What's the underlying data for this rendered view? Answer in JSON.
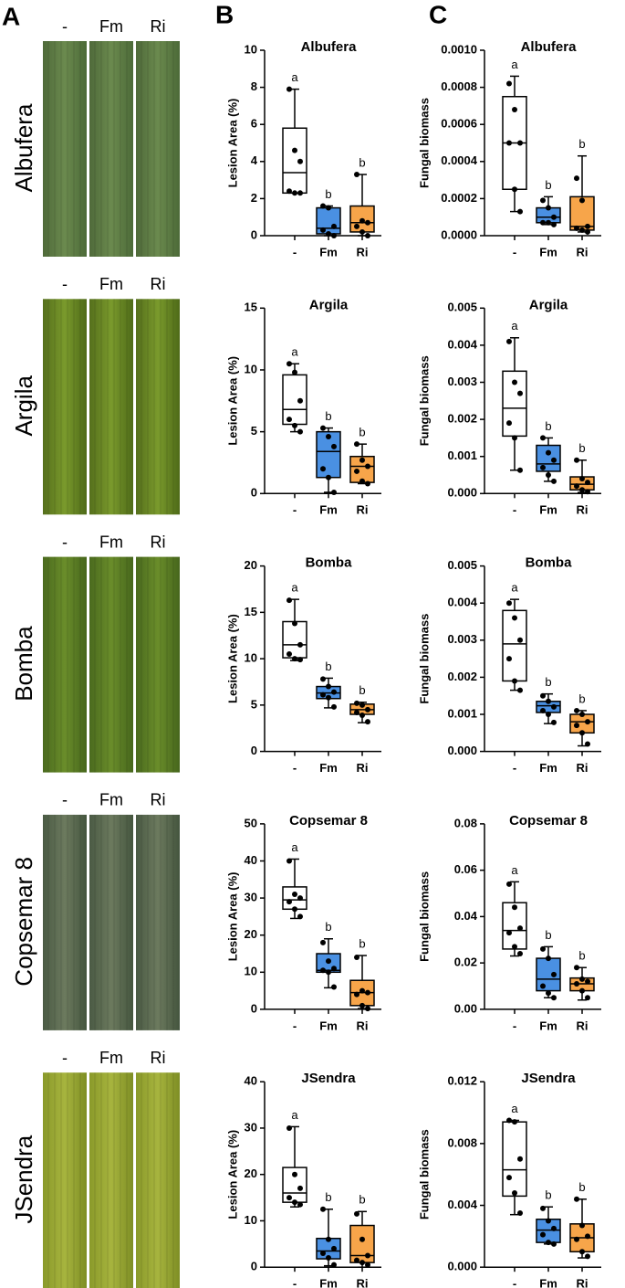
{
  "panels": [
    "A",
    "B",
    "C"
  ],
  "leaf_rows": [
    {
      "label": "Albufera",
      "columns": [
        "-",
        "Fm",
        "Ri"
      ]
    },
    {
      "label": "Argila",
      "columns": [
        "-",
        "Fm",
        "Ri"
      ]
    },
    {
      "label": "Bomba",
      "columns": [
        "-",
        "Fm",
        "Ri"
      ]
    },
    {
      "label": "Copsemar 8",
      "columns": [
        "-",
        "Fm",
        "Ri"
      ]
    },
    {
      "label": "JSendra",
      "columns": [
        "-",
        "Fm",
        "Ri"
      ]
    }
  ],
  "chart_data": [
    {
      "type": "box",
      "title": "Albufera",
      "ylabel": "Lesion Area (%)",
      "ylim": [
        0,
        10
      ],
      "yticks": [
        0,
        2,
        4,
        6,
        8,
        10
      ],
      "categories": [
        "-",
        "Fm",
        "Ri"
      ],
      "colors": [
        "#ffffff",
        "#4a90e2",
        "#f7a54a"
      ],
      "letters": [
        "a",
        "b",
        "b"
      ],
      "boxes": [
        {
          "min": 2.3,
          "q1": 2.3,
          "median": 3.4,
          "q3": 5.8,
          "max": 7.9,
          "points": [
            7.9,
            4.6,
            4.0,
            2.4,
            2.3,
            2.3
          ]
        },
        {
          "min": 0.0,
          "q1": 0.1,
          "median": 0.4,
          "q3": 1.5,
          "max": 1.6,
          "points": [
            1.6,
            1.5,
            0.5,
            0.3,
            0.1,
            0.0
          ]
        },
        {
          "min": 0.0,
          "q1": 0.2,
          "median": 0.7,
          "q3": 1.6,
          "max": 3.3,
          "points": [
            3.3,
            0.8,
            0.7,
            0.5,
            0.2,
            0.0
          ]
        }
      ]
    },
    {
      "type": "box",
      "title": "Albufera",
      "ylabel": "Fungal biomass",
      "ylim": [
        0,
        0.001
      ],
      "yticks": [
        {
          "value": 0,
          "label": "0.0000"
        },
        {
          "value": 0.0002,
          "label": "0.0002"
        },
        {
          "value": 0.0004,
          "label": "0.0004"
        },
        {
          "value": 0.0006,
          "label": "0.0006"
        },
        {
          "value": 0.0008,
          "label": "0.0008"
        },
        {
          "value": 0.001,
          "label": "0.0010"
        }
      ],
      "categories": [
        "-",
        "Fm",
        "Ri"
      ],
      "colors": [
        "#ffffff",
        "#4a90e2",
        "#f7a54a"
      ],
      "letters": [
        "a",
        "b",
        "b"
      ],
      "boxes": [
        {
          "min": 0.00013,
          "q1": 0.00025,
          "median": 0.0005,
          "q3": 0.00075,
          "max": 0.00086,
          "points": [
            0.00082,
            0.00068,
            0.0005,
            0.0005,
            0.00025,
            0.00013
          ]
        },
        {
          "min": 6e-05,
          "q1": 7e-05,
          "median": 0.0001,
          "q3": 0.00015,
          "max": 0.00021,
          "points": [
            0.00019,
            0.00015,
            0.0001,
            7e-05,
            7e-05,
            6e-05
          ]
        },
        {
          "min": 2e-05,
          "q1": 3e-05,
          "median": 5e-05,
          "q3": 0.00021,
          "max": 0.00043,
          "points": [
            0.00031,
            0.00019,
            5e-05,
            4e-05,
            3e-05,
            2e-05
          ]
        }
      ]
    },
    {
      "type": "box",
      "title": "Argila",
      "ylabel": "Lesion Area (%)",
      "ylim": [
        0,
        15
      ],
      "yticks": [
        0,
        5,
        10,
        15
      ],
      "categories": [
        "-",
        "Fm",
        "Ri"
      ],
      "colors": [
        "#ffffff",
        "#4a90e2",
        "#f7a54a"
      ],
      "letters": [
        "a",
        "b",
        "b"
      ],
      "boxes": [
        {
          "min": 5.0,
          "q1": 5.6,
          "median": 6.8,
          "q3": 9.6,
          "max": 10.5,
          "points": [
            10.5,
            9.8,
            7.5,
            6.0,
            5.5,
            5.0
          ]
        },
        {
          "min": 0.1,
          "q1": 1.3,
          "median": 3.4,
          "q3": 5.0,
          "max": 5.3,
          "points": [
            5.3,
            4.6,
            3.8,
            2.0,
            1.3,
            0.1
          ]
        },
        {
          "min": 0.8,
          "q1": 0.9,
          "median": 2.2,
          "q3": 3.0,
          "max": 4.0,
          "points": [
            4.0,
            2.7,
            2.2,
            1.8,
            1.0,
            0.8
          ]
        }
      ]
    },
    {
      "type": "box",
      "title": "Argila",
      "ylabel": "Fungal biomass",
      "ylim": [
        0,
        0.005
      ],
      "yticks": [
        {
          "value": 0,
          "label": "0.000"
        },
        {
          "value": 0.001,
          "label": "0.001"
        },
        {
          "value": 0.002,
          "label": "0.002"
        },
        {
          "value": 0.003,
          "label": "0.003"
        },
        {
          "value": 0.004,
          "label": "0.004"
        },
        {
          "value": 0.005,
          "label": "0.005"
        }
      ],
      "categories": [
        "-",
        "Fm",
        "Ri"
      ],
      "colors": [
        "#ffffff",
        "#4a90e2",
        "#f7a54a"
      ],
      "letters": [
        "a",
        "b",
        "b"
      ],
      "boxes": [
        {
          "min": 0.00063,
          "q1": 0.00155,
          "median": 0.0023,
          "q3": 0.0033,
          "max": 0.0042,
          "points": [
            0.0041,
            0.003,
            0.0027,
            0.0019,
            0.0015,
            0.00063
          ]
        },
        {
          "min": 0.00033,
          "q1": 0.0006,
          "median": 0.0008,
          "q3": 0.0013,
          "max": 0.0015,
          "points": [
            0.0015,
            0.0011,
            0.0009,
            0.0007,
            0.0005,
            0.00033
          ]
        },
        {
          "min": 3e-05,
          "q1": 0.0001,
          "median": 0.00025,
          "q3": 0.00045,
          "max": 0.0009,
          "points": [
            0.0009,
            0.0004,
            0.0003,
            0.0002,
            0.0001,
            5e-05
          ]
        }
      ]
    },
    {
      "type": "box",
      "title": "Bomba",
      "ylabel": "Lesion Area (%)",
      "ylim": [
        0,
        20
      ],
      "yticks": [
        0,
        5,
        10,
        15,
        20
      ],
      "categories": [
        "-",
        "Fm",
        "Ri"
      ],
      "colors": [
        "#ffffff",
        "#4a90e2",
        "#f7a54a"
      ],
      "letters": [
        "a",
        "b",
        "b"
      ],
      "boxes": [
        {
          "min": 9.8,
          "q1": 10.1,
          "median": 11.5,
          "q3": 14.0,
          "max": 16.4,
          "points": [
            16.3,
            13.8,
            11.5,
            10.5,
            10.0,
            9.9
          ]
        },
        {
          "min": 4.7,
          "q1": 5.7,
          "median": 6.3,
          "q3": 7.0,
          "max": 7.9,
          "points": [
            7.8,
            7.0,
            6.4,
            6.1,
            5.8,
            4.8
          ]
        },
        {
          "min": 3.1,
          "q1": 4.0,
          "median": 4.5,
          "q3": 5.1,
          "max": 5.3,
          "points": [
            5.2,
            5.0,
            4.5,
            4.2,
            3.9,
            3.2
          ]
        }
      ]
    },
    {
      "type": "box",
      "title": "Bomba",
      "ylabel": "Fungal biomass",
      "ylim": [
        0,
        0.005
      ],
      "yticks": [
        {
          "value": 0,
          "label": "0.000"
        },
        {
          "value": 0.001,
          "label": "0.001"
        },
        {
          "value": 0.002,
          "label": "0.002"
        },
        {
          "value": 0.003,
          "label": "0.003"
        },
        {
          "value": 0.004,
          "label": "0.004"
        },
        {
          "value": 0.005,
          "label": "0.005"
        }
      ],
      "categories": [
        "-",
        "Fm",
        "Ri"
      ],
      "colors": [
        "#ffffff",
        "#4a90e2",
        "#f7a54a"
      ],
      "letters": [
        "a",
        "b",
        "b"
      ],
      "boxes": [
        {
          "min": 0.00165,
          "q1": 0.0019,
          "median": 0.0029,
          "q3": 0.0038,
          "max": 0.0041,
          "points": [
            0.004,
            0.0036,
            0.003,
            0.0025,
            0.0019,
            0.00165
          ]
        },
        {
          "min": 0.00075,
          "q1": 0.00105,
          "median": 0.00123,
          "q3": 0.00135,
          "max": 0.00155,
          "points": [
            0.0015,
            0.00135,
            0.0012,
            0.0011,
            0.001,
            0.00078
          ]
        },
        {
          "min": 0.00015,
          "q1": 0.0005,
          "median": 0.0008,
          "q3": 0.001,
          "max": 0.0011,
          "points": [
            0.0011,
            0.001,
            0.0008,
            0.0007,
            0.0005,
            0.0002
          ]
        }
      ]
    },
    {
      "type": "box",
      "title": "Copsemar 8",
      "ylabel": "Lesion Area (%)",
      "ylim": [
        0,
        50
      ],
      "yticks": [
        0,
        10,
        20,
        30,
        40,
        50
      ],
      "categories": [
        "-",
        "Fm",
        "Ri"
      ],
      "colors": [
        "#ffffff",
        "#4a90e2",
        "#f7a54a"
      ],
      "letters": [
        "a",
        "b",
        "b"
      ],
      "boxes": [
        {
          "min": 24.5,
          "q1": 27.0,
          "median": 29.5,
          "q3": 33.0,
          "max": 40.5,
          "points": [
            40,
            31,
            30,
            29,
            27,
            25
          ]
        },
        {
          "min": 5.8,
          "q1": 10.0,
          "median": 10.5,
          "q3": 15.0,
          "max": 19.0,
          "points": [
            18,
            13,
            11,
            10.5,
            10,
            6
          ]
        },
        {
          "min": 0.2,
          "q1": 1.0,
          "median": 4.5,
          "q3": 7.8,
          "max": 14.5,
          "points": [
            14,
            5,
            4.5,
            4,
            1,
            0.2
          ]
        }
      ]
    },
    {
      "type": "box",
      "title": "Copsemar 8",
      "ylabel": "Fungal biomass",
      "ylim": [
        0,
        0.08
      ],
      "yticks": [
        {
          "value": 0,
          "label": "0.00"
        },
        {
          "value": 0.02,
          "label": "0.02"
        },
        {
          "value": 0.04,
          "label": "0.04"
        },
        {
          "value": 0.06,
          "label": "0.06"
        },
        {
          "value": 0.08,
          "label": "0.08"
        }
      ],
      "categories": [
        "-",
        "Fm",
        "Ri"
      ],
      "colors": [
        "#ffffff",
        "#4a90e2",
        "#f7a54a"
      ],
      "letters": [
        "a",
        "b",
        "b"
      ],
      "boxes": [
        {
          "min": 0.023,
          "q1": 0.026,
          "median": 0.034,
          "q3": 0.046,
          "max": 0.055,
          "points": [
            0.054,
            0.044,
            0.035,
            0.033,
            0.027,
            0.024
          ]
        },
        {
          "min": 0.005,
          "q1": 0.008,
          "median": 0.013,
          "q3": 0.022,
          "max": 0.027,
          "points": [
            0.026,
            0.022,
            0.015,
            0.01,
            0.007,
            0.005
          ]
        },
        {
          "min": 0.004,
          "q1": 0.008,
          "median": 0.011,
          "q3": 0.0135,
          "max": 0.018,
          "points": [
            0.018,
            0.013,
            0.012,
            0.011,
            0.008,
            0.005
          ]
        }
      ]
    },
    {
      "type": "box",
      "title": "JSendra",
      "ylabel": "Lesion Area (%)",
      "ylim": [
        0,
        40
      ],
      "yticks": [
        0,
        10,
        20,
        30,
        40
      ],
      "categories": [
        "-",
        "Fm",
        "Ri"
      ],
      "colors": [
        "#ffffff",
        "#4a90e2",
        "#f7a54a"
      ],
      "letters": [
        "a",
        "b",
        "b"
      ],
      "boxes": [
        {
          "min": 13.0,
          "q1": 14.0,
          "median": 16.0,
          "q3": 21.5,
          "max": 30.3,
          "points": [
            30,
            20,
            17,
            15,
            14,
            13.5
          ]
        },
        {
          "min": 0.3,
          "q1": 1.8,
          "median": 3.5,
          "q3": 6.2,
          "max": 12.5,
          "points": [
            12.5,
            6,
            4,
            3,
            2,
            0.5
          ]
        },
        {
          "min": 0.0,
          "q1": 1.0,
          "median": 2.5,
          "q3": 9.0,
          "max": 12.0,
          "points": [
            11.5,
            6,
            2.5,
            1.5,
            1,
            0.5
          ]
        }
      ]
    },
    {
      "type": "box",
      "title": "JSendra",
      "ylabel": "Fungal biomass",
      "ylim": [
        0,
        0.012
      ],
      "yticks": [
        {
          "value": 0,
          "label": "0.000"
        },
        {
          "value": 0.004,
          "label": "0.004"
        },
        {
          "value": 0.008,
          "label": "0.008"
        },
        {
          "value": 0.012,
          "label": "0.012"
        }
      ],
      "categories": [
        "-",
        "Fm",
        "Ri"
      ],
      "colors": [
        "#ffffff",
        "#4a90e2",
        "#f7a54a"
      ],
      "letters": [
        "a",
        "b",
        "b"
      ],
      "boxes": [
        {
          "min": 0.0034,
          "q1": 0.0046,
          "median": 0.0063,
          "q3": 0.0094,
          "max": 0.0095,
          "points": [
            0.0095,
            0.0094,
            0.007,
            0.0058,
            0.0048,
            0.0035
          ]
        },
        {
          "min": 0.0015,
          "q1": 0.0016,
          "median": 0.0024,
          "q3": 0.0031,
          "max": 0.0039,
          "points": [
            0.0038,
            0.003,
            0.0025,
            0.0021,
            0.0016,
            0.0015
          ]
        },
        {
          "min": 0.0006,
          "q1": 0.001,
          "median": 0.0019,
          "q3": 0.0028,
          "max": 0.0044,
          "points": [
            0.0044,
            0.0027,
            0.002,
            0.0018,
            0.001,
            0.0007
          ]
        }
      ]
    }
  ]
}
